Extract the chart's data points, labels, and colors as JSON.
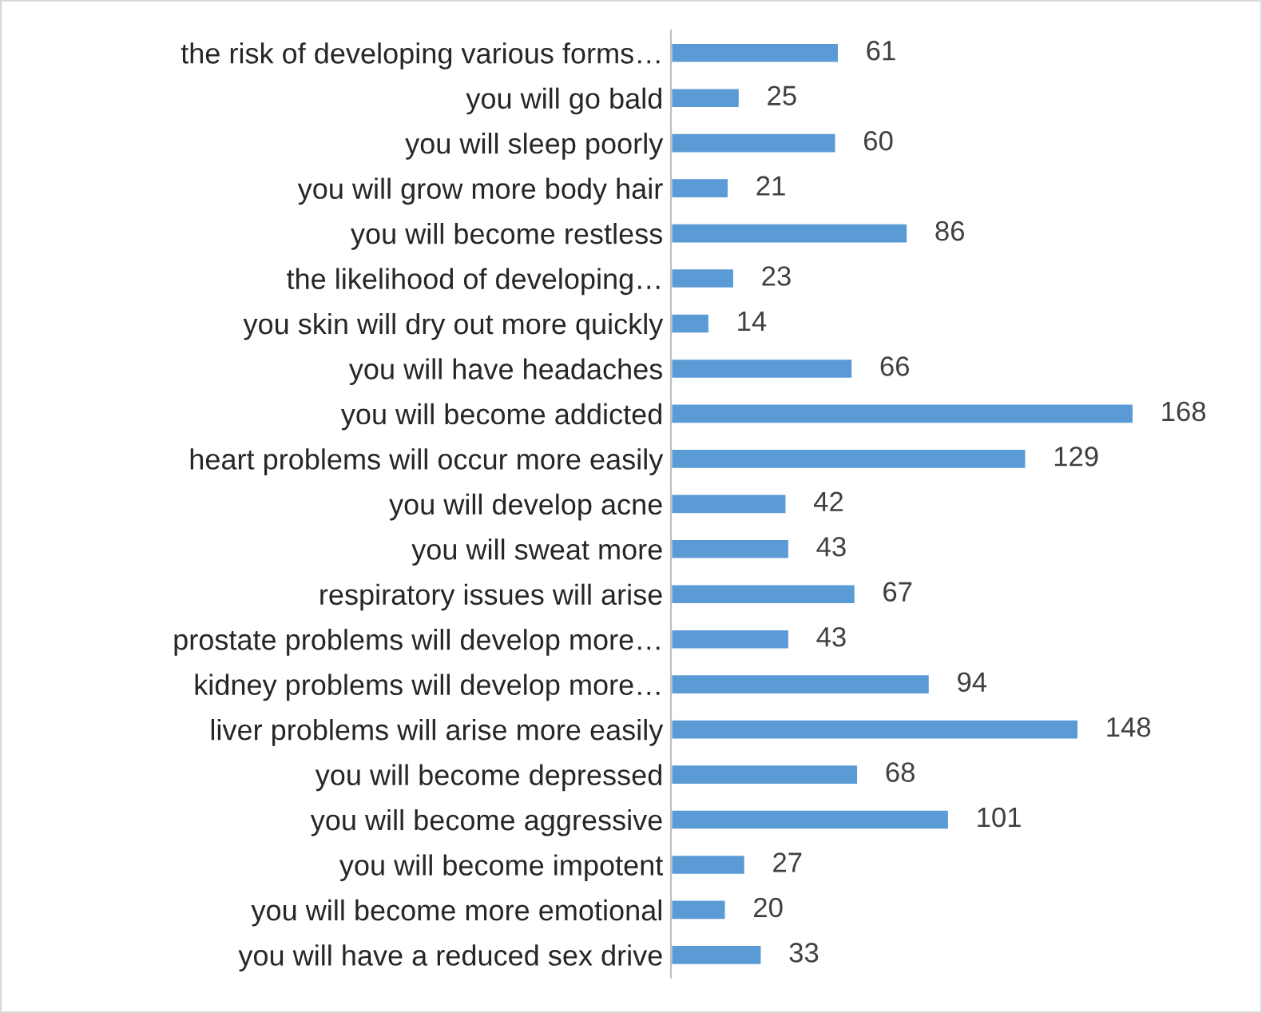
{
  "chart_data": {
    "type": "bar",
    "orientation": "horizontal",
    "data_labels": true,
    "tick_labels": "y",
    "grid": false,
    "legend": false,
    "categories": [
      "the risk of developing various forms…",
      "you will go bald",
      "you will sleep poorly",
      "you will grow more body hair",
      "you will become restless",
      "the likelihood of developing…",
      "you skin will dry out more quickly",
      "you will have headaches",
      "you will become addicted",
      "heart problems will occur more easily",
      "you will develop acne",
      "you will sweat more",
      "respiratory issues will arise",
      "prostate problems will develop more…",
      "kidney problems will develop more…",
      "liver problems will arise more easily",
      "you will become depressed",
      "you will become aggressive",
      "you will become impotent",
      "you will become more emotional",
      "you will have a reduced sex drive"
    ],
    "values": [
      61,
      25,
      60,
      21,
      86,
      23,
      14,
      66,
      168,
      129,
      42,
      43,
      67,
      43,
      94,
      148,
      68,
      101,
      27,
      20,
      33
    ],
    "color": "#5b9bd5"
  }
}
